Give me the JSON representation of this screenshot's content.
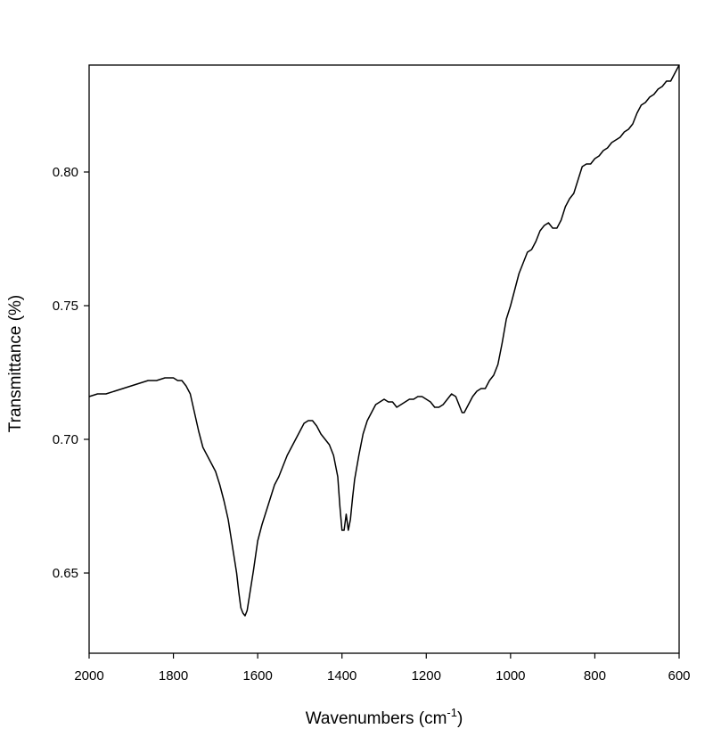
{
  "chart_data": {
    "type": "line",
    "xlabel": "Wavenumbers (cm",
    "xlabel_sup": "-1",
    "xlabel_end": ")",
    "ylabel": "Transmittance (%)",
    "xlim": [
      2000,
      600
    ],
    "x_reversed": true,
    "ylim": [
      0.62,
      0.84
    ],
    "grid": false,
    "legend": "none",
    "line_color": "#000000",
    "x_ticks": [
      2000,
      1800,
      1600,
      1400,
      1200,
      1000,
      800,
      600
    ],
    "x_tick_labels": [
      "2000",
      "1800",
      "1600",
      "1400",
      "1200",
      "1000",
      "800",
      "600"
    ],
    "y_ticks": [
      0.65,
      0.7,
      0.75,
      0.8
    ],
    "y_tick_labels": [
      "0.65",
      "0.70",
      "0.75",
      "0.80"
    ],
    "series": [
      {
        "x": [
          2000,
          1980,
          1960,
          1940,
          1920,
          1900,
          1880,
          1860,
          1840,
          1820,
          1810,
          1800,
          1790,
          1780,
          1770,
          1760,
          1750,
          1740,
          1730,
          1720,
          1710,
          1700,
          1690,
          1680,
          1670,
          1660,
          1650,
          1645,
          1640,
          1635,
          1630,
          1625,
          1620,
          1610,
          1600,
          1590,
          1580,
          1570,
          1560,
          1550,
          1540,
          1530,
          1520,
          1510,
          1500,
          1490,
          1480,
          1470,
          1460,
          1450,
          1440,
          1430,
          1420,
          1410,
          1405,
          1400,
          1395,
          1390,
          1385,
          1380,
          1375,
          1370,
          1360,
          1350,
          1340,
          1330,
          1320,
          1310,
          1300,
          1290,
          1280,
          1270,
          1260,
          1250,
          1240,
          1230,
          1220,
          1210,
          1200,
          1190,
          1180,
          1170,
          1160,
          1150,
          1140,
          1130,
          1120,
          1115,
          1110,
          1100,
          1090,
          1080,
          1070,
          1060,
          1050,
          1040,
          1030,
          1020,
          1010,
          1000,
          990,
          980,
          970,
          960,
          950,
          940,
          930,
          920,
          910,
          900,
          890,
          880,
          870,
          860,
          850,
          840,
          830,
          820,
          810,
          800,
          790,
          780,
          770,
          760,
          750,
          740,
          730,
          720,
          710,
          700,
          690,
          680,
          670,
          660,
          650,
          640,
          630,
          620,
          610,
          600
        ],
        "y": [
          0.716,
          0.717,
          0.717,
          0.718,
          0.719,
          0.72,
          0.721,
          0.722,
          0.722,
          0.723,
          0.723,
          0.723,
          0.722,
          0.722,
          0.72,
          0.717,
          0.71,
          0.703,
          0.697,
          0.694,
          0.691,
          0.688,
          0.683,
          0.677,
          0.67,
          0.66,
          0.65,
          0.643,
          0.637,
          0.635,
          0.634,
          0.636,
          0.641,
          0.651,
          0.662,
          0.668,
          0.673,
          0.678,
          0.683,
          0.686,
          0.69,
          0.694,
          0.697,
          0.7,
          0.703,
          0.706,
          0.707,
          0.707,
          0.705,
          0.702,
          0.7,
          0.698,
          0.694,
          0.686,
          0.675,
          0.666,
          0.666,
          0.672,
          0.666,
          0.67,
          0.678,
          0.685,
          0.694,
          0.702,
          0.707,
          0.71,
          0.713,
          0.714,
          0.715,
          0.714,
          0.714,
          0.712,
          0.713,
          0.714,
          0.715,
          0.715,
          0.716,
          0.716,
          0.715,
          0.714,
          0.712,
          0.712,
          0.713,
          0.715,
          0.717,
          0.716,
          0.712,
          0.71,
          0.71,
          0.713,
          0.716,
          0.718,
          0.719,
          0.719,
          0.722,
          0.724,
          0.728,
          0.736,
          0.745,
          0.75,
          0.756,
          0.762,
          0.766,
          0.77,
          0.771,
          0.774,
          0.778,
          0.78,
          0.781,
          0.779,
          0.779,
          0.782,
          0.787,
          0.79,
          0.792,
          0.797,
          0.802,
          0.803,
          0.803,
          0.805,
          0.806,
          0.808,
          0.809,
          0.811,
          0.812,
          0.813,
          0.815,
          0.816,
          0.818,
          0.822,
          0.825,
          0.826,
          0.828,
          0.829,
          0.831,
          0.832,
          0.834,
          0.834,
          0.837,
          0.84
        ]
      }
    ]
  }
}
